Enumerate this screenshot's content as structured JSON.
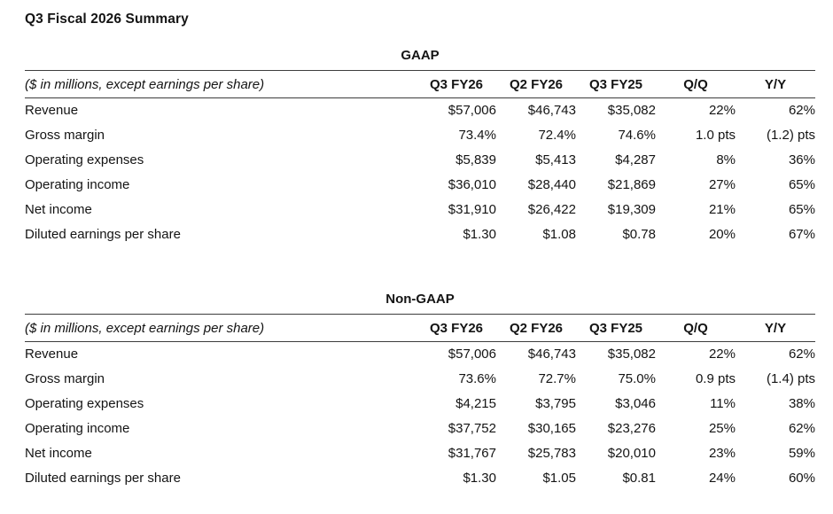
{
  "page": {
    "title": "Q3 Fiscal 2026 Summary"
  },
  "tables": [
    {
      "title": "GAAP",
      "note": "($ in millions, except earnings per share)",
      "columns": [
        "Q3 FY26",
        "Q2 FY26",
        "Q3 FY25",
        "Q/Q",
        "Y/Y"
      ],
      "rows": [
        {
          "label": "Revenue",
          "values": [
            "$57,006",
            "$46,743",
            "$35,082",
            "22%",
            "62%"
          ]
        },
        {
          "label": "Gross margin",
          "values": [
            "73.4%",
            "72.4%",
            "74.6%",
            "1.0 pts",
            "(1.2) pts"
          ]
        },
        {
          "label": "Operating expenses",
          "values": [
            "$5,839",
            "$5,413",
            "$4,287",
            "8%",
            "36%"
          ]
        },
        {
          "label": "Operating income",
          "values": [
            "$36,010",
            "$28,440",
            "$21,869",
            "27%",
            "65%"
          ]
        },
        {
          "label": "Net income",
          "values": [
            "$31,910",
            "$26,422",
            "$19,309",
            "21%",
            "65%"
          ]
        },
        {
          "label": "Diluted earnings per share",
          "values": [
            "$1.30",
            "$1.08",
            "$0.78",
            "20%",
            "67%"
          ]
        }
      ]
    },
    {
      "title": "Non-GAAP",
      "note": "($ in millions, except earnings per share)",
      "columns": [
        "Q3 FY26",
        "Q2 FY26",
        "Q3 FY25",
        "Q/Q",
        "Y/Y"
      ],
      "rows": [
        {
          "label": "Revenue",
          "values": [
            "$57,006",
            "$46,743",
            "$35,082",
            "22%",
            "62%"
          ]
        },
        {
          "label": "Gross margin",
          "values": [
            "73.6%",
            "72.7%",
            "75.0%",
            "0.9 pts",
            "(1.4) pts"
          ]
        },
        {
          "label": "Operating expenses",
          "values": [
            "$4,215",
            "$3,795",
            "$3,046",
            "11%",
            "38%"
          ]
        },
        {
          "label": "Operating income",
          "values": [
            "$37,752",
            "$30,165",
            "$23,276",
            "25%",
            "62%"
          ]
        },
        {
          "label": "Net income",
          "values": [
            "$31,767",
            "$25,783",
            "$20,010",
            "23%",
            "59%"
          ]
        },
        {
          "label": "Diluted earnings per share",
          "values": [
            "$1.30",
            "$1.05",
            "$0.81",
            "24%",
            "60%"
          ]
        }
      ]
    }
  ]
}
